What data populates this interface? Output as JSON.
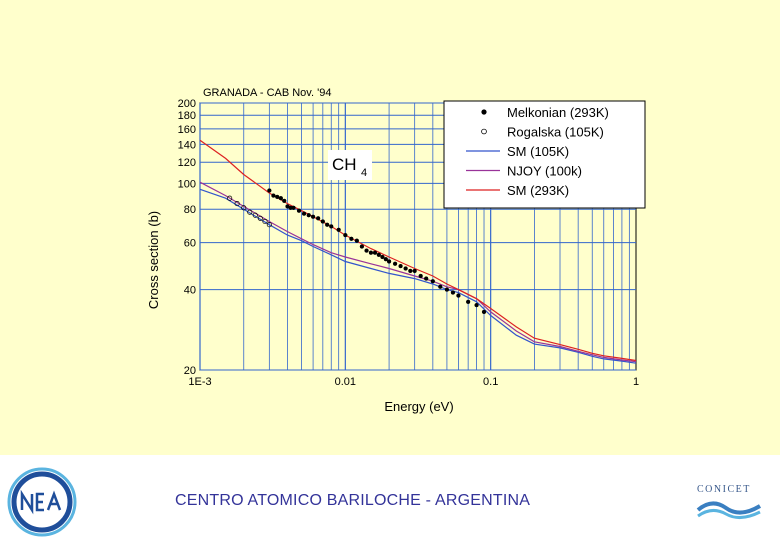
{
  "footer": {
    "text": "CENTRO ATOMICO BARILOCHE - ARGENTINA",
    "logo_left_name": "cnea-logo",
    "logo_right_text": "CONICET",
    "colors": {
      "footer_text": "#333399",
      "logo_blue": "#1f4e9a",
      "logo_cyan": "#5ab4e0"
    }
  },
  "chart_data": {
    "type": "line",
    "title": "GRANADA - CAB Nov. '94",
    "annotation": {
      "text_main": "CH",
      "text_sub": "4"
    },
    "xlabel": "Energy (eV)",
    "ylabel": "Cross section (b)",
    "xscale": "log",
    "yscale": "log",
    "xlim": [
      0.001,
      1
    ],
    "ylim": [
      20,
      200
    ],
    "xticks": [
      {
        "value": 0.001,
        "label": "1E-3"
      },
      {
        "value": 0.01,
        "label": "0.01"
      },
      {
        "value": 0.1,
        "label": "0.1"
      },
      {
        "value": 1,
        "label": "1"
      }
    ],
    "yticks": [
      {
        "value": 20,
        "label": "20"
      },
      {
        "value": 40,
        "label": "40"
      },
      {
        "value": 60,
        "label": "60"
      },
      {
        "value": 80,
        "label": "80"
      },
      {
        "value": 100,
        "label": "100"
      },
      {
        "value": 120,
        "label": "120"
      },
      {
        "value": 140,
        "label": "140"
      },
      {
        "value": 160,
        "label": "160"
      },
      {
        "value": 180,
        "label": "180"
      },
      {
        "value": 200,
        "label": "200"
      }
    ],
    "grid": true,
    "legend_position": "top-right",
    "series": [
      {
        "name": "Melkonian (293K)",
        "kind": "scatter",
        "marker": "filled-circle",
        "color": "#000000",
        "x": [
          0.003,
          0.0032,
          0.0034,
          0.0036,
          0.0038,
          0.004,
          0.0042,
          0.0044,
          0.0048,
          0.0052,
          0.0056,
          0.006,
          0.0065,
          0.007,
          0.0075,
          0.008,
          0.009,
          0.01,
          0.011,
          0.012,
          0.013,
          0.014,
          0.015,
          0.016,
          0.017,
          0.018,
          0.019,
          0.02,
          0.022,
          0.024,
          0.026,
          0.028,
          0.03,
          0.033,
          0.036,
          0.04,
          0.045,
          0.05,
          0.055,
          0.06,
          0.07,
          0.08,
          0.09
        ],
        "y": [
          94,
          90,
          89,
          88,
          86,
          82,
          81,
          81,
          79,
          77,
          76,
          75,
          74,
          72,
          70,
          69,
          67,
          64,
          62,
          61,
          58,
          56,
          55,
          55,
          54,
          53,
          52,
          51,
          50,
          49,
          48,
          47,
          47,
          45,
          44,
          43,
          41,
          40,
          39,
          38,
          36,
          35,
          33
        ]
      },
      {
        "name": "Rogalska  (105K)",
        "kind": "scatter",
        "marker": "open-circle",
        "color": "#000000",
        "x": [
          0.0016,
          0.0018,
          0.002,
          0.0022,
          0.0024,
          0.0026,
          0.0028,
          0.003
        ],
        "y": [
          88,
          84,
          81,
          78,
          76,
          74,
          72,
          70
        ]
      },
      {
        "name": "SM (105K)",
        "kind": "line",
        "color": "#3355cc",
        "x": [
          0.001,
          0.0015,
          0.002,
          0.003,
          0.004,
          0.005,
          0.006,
          0.008,
          0.01,
          0.015,
          0.02,
          0.03,
          0.04,
          0.05,
          0.06,
          0.08,
          0.1,
          0.15,
          0.2,
          0.3,
          0.4,
          0.5,
          0.6,
          0.8,
          1
        ],
        "y": [
          95,
          88,
          80,
          70,
          64,
          61,
          58,
          54,
          51,
          48,
          46,
          44,
          42,
          40,
          39,
          36,
          32,
          27,
          25,
          24.2,
          23.3,
          22.5,
          22.0,
          21.6,
          21.2
        ]
      },
      {
        "name": "NJOY (100k)",
        "kind": "line",
        "color": "#993399",
        "x": [
          0.001,
          0.0015,
          0.002,
          0.003,
          0.004,
          0.005,
          0.006,
          0.008,
          0.01,
          0.015,
          0.02,
          0.03,
          0.04,
          0.05,
          0.06,
          0.08,
          0.1,
          0.15,
          0.2,
          0.3,
          0.4,
          0.5,
          0.6,
          0.8,
          1
        ],
        "y": [
          101,
          90,
          82,
          72,
          66,
          62,
          59,
          55,
          53,
          50,
          48,
          45,
          43,
          41,
          40,
          37,
          33,
          28,
          25.5,
          24.5,
          23.5,
          22.8,
          22.3,
          21.8,
          21.5
        ]
      },
      {
        "name": "SM (293K)",
        "kind": "line",
        "color": "#dd2222",
        "x": [
          0.001,
          0.0015,
          0.002,
          0.003,
          0.004,
          0.005,
          0.006,
          0.008,
          0.01,
          0.015,
          0.02,
          0.03,
          0.04,
          0.05,
          0.06,
          0.08,
          0.1,
          0.15,
          0.2,
          0.3,
          0.4,
          0.5,
          0.6,
          0.8,
          1
        ],
        "y": [
          145,
          124,
          108,
          92,
          84,
          79,
          75,
          69,
          64,
          57,
          53,
          48,
          45,
          42,
          40,
          37,
          34,
          29,
          26.3,
          24.9,
          23.9,
          23.1,
          22.6,
          22.1,
          21.7
        ]
      }
    ]
  }
}
